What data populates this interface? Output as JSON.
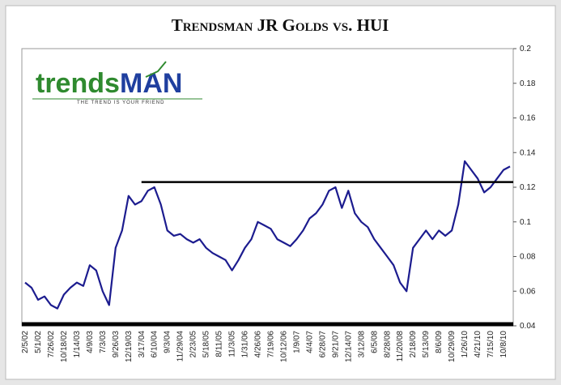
{
  "chart_data": {
    "type": "line",
    "title": "Trendsman JR Golds vs. HUI",
    "categories": [
      "2/5/02",
      null,
      "5/1/02",
      null,
      "7/26/02",
      null,
      "10/18/02",
      null,
      "1/14/03",
      null,
      "4/9/03",
      null,
      "7/3/03",
      null,
      "9/26/03",
      null,
      "12/19/03",
      null,
      "3/17/04",
      null,
      "6/10/04",
      null,
      "9/3/04",
      null,
      "11/29/04",
      null,
      "2/23/05",
      null,
      "5/18/05",
      null,
      "8/11/05",
      null,
      "11/3/05",
      null,
      "1/31/06",
      null,
      "4/26/06",
      null,
      "7/19/06",
      null,
      "10/12/06",
      null,
      "1/9/07",
      null,
      "4/4/07",
      null,
      "6/28/07",
      null,
      "9/21/07",
      null,
      "12/14/07",
      null,
      "3/12/08",
      null,
      "6/5/08",
      null,
      "8/28/08",
      null,
      "11/20/08",
      null,
      "2/18/09",
      null,
      "5/13/09",
      null,
      "8/6/09",
      null,
      "10/29/09",
      null,
      "1/26/10",
      null,
      "4/21/10",
      null,
      "7/15/10",
      null,
      "10/8/10",
      null
    ],
    "series": [
      {
        "color": "#1c1c8f",
        "values": [
          0.065,
          0.062,
          0.055,
          0.057,
          0.052,
          0.05,
          0.058,
          0.062,
          0.065,
          0.063,
          0.075,
          0.072,
          0.06,
          0.052,
          0.085,
          0.095,
          0.115,
          0.11,
          0.112,
          0.118,
          0.12,
          0.11,
          0.095,
          0.092,
          0.093,
          0.09,
          0.088,
          0.09,
          0.085,
          0.082,
          0.08,
          0.078,
          0.072,
          0.078,
          0.085,
          0.09,
          0.1,
          0.098,
          0.096,
          0.09,
          0.088,
          0.086,
          0.09,
          0.095,
          0.102,
          0.105,
          0.11,
          0.118,
          0.12,
          0.108,
          0.118,
          0.105,
          0.1,
          0.097,
          0.09,
          0.085,
          0.08,
          0.075,
          0.065,
          0.06,
          0.085,
          0.09,
          0.095,
          0.09,
          0.095,
          0.092,
          0.095,
          0.11,
          0.135,
          0.13,
          0.125,
          0.117,
          0.12,
          0.125,
          0.13,
          0.132
        ]
      }
    ],
    "ylim": [
      0.04,
      0.2
    ],
    "yticks": [
      0.04,
      0.06,
      0.08,
      0.1,
      0.12,
      0.14,
      0.16,
      0.18,
      0.2
    ],
    "reference_line": {
      "y": 0.123,
      "x_start": "3/17/04",
      "color": "#000000"
    }
  },
  "logo": {
    "word": "trends",
    "accent": "MAN",
    "tagline": "THE TREND IS YOUR FRIEND"
  }
}
